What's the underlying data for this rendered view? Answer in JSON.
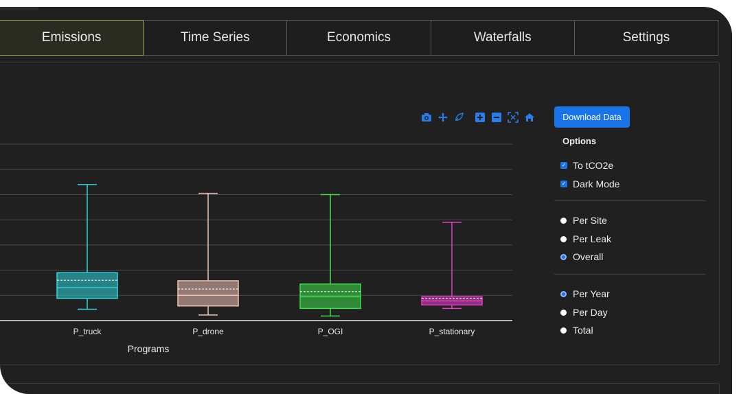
{
  "tabs": [
    {
      "label": "Emissions",
      "active": true
    },
    {
      "label": "Time Series",
      "active": false
    },
    {
      "label": "Economics",
      "active": false
    },
    {
      "label": "Waterfalls",
      "active": false
    },
    {
      "label": "Settings",
      "active": false
    }
  ],
  "modebar": [
    "camera-icon",
    "pan-icon",
    "lasso-icon",
    "zoom-in-icon",
    "zoom-out-icon",
    "autoscale-icon",
    "home-icon"
  ],
  "sidebar": {
    "download_label": "Download Data",
    "options_title": "Options",
    "checks": [
      {
        "label": "To tCO2e",
        "checked": true
      },
      {
        "label": "Dark Mode",
        "checked": true
      }
    ],
    "normalization": [
      {
        "label": "Per Site",
        "selected": false
      },
      {
        "label": "Per Leak",
        "selected": false
      },
      {
        "label": "Overall",
        "selected": true
      }
    ],
    "timescale": [
      {
        "label": "Per Year",
        "selected": true
      },
      {
        "label": "Per Day",
        "selected": false
      },
      {
        "label": "Total",
        "selected": false
      }
    ]
  },
  "chart_data": {
    "type": "box",
    "xlabel": "Programs",
    "ylabel": "",
    "ylim": [
      0,
      7
    ],
    "grid": true,
    "categories": [
      "P_truck",
      "P_drone",
      "P_OGI",
      "P_stationary"
    ],
    "series": [
      {
        "color": "#2fd5db",
        "whisker_low": 0.45,
        "q1": 0.88,
        "median": 1.3,
        "mean": 1.6,
        "q3": 1.9,
        "whisker_high": 5.4
      },
      {
        "color": "#f0c3b4",
        "whisker_low": 0.22,
        "q1": 0.58,
        "median": 1.0,
        "mean": 1.25,
        "q3": 1.58,
        "whisker_high": 5.05
      },
      {
        "color": "#3de04a",
        "whisker_low": 0.18,
        "q1": 0.48,
        "median": 0.95,
        "mean": 1.15,
        "q3": 1.45,
        "whisker_high": 5.0
      },
      {
        "color": "#e43ec7",
        "whisker_low": 0.48,
        "q1": 0.62,
        "median": 0.78,
        "mean": 0.88,
        "q3": 0.95,
        "whisker_high": 3.9
      }
    ]
  }
}
